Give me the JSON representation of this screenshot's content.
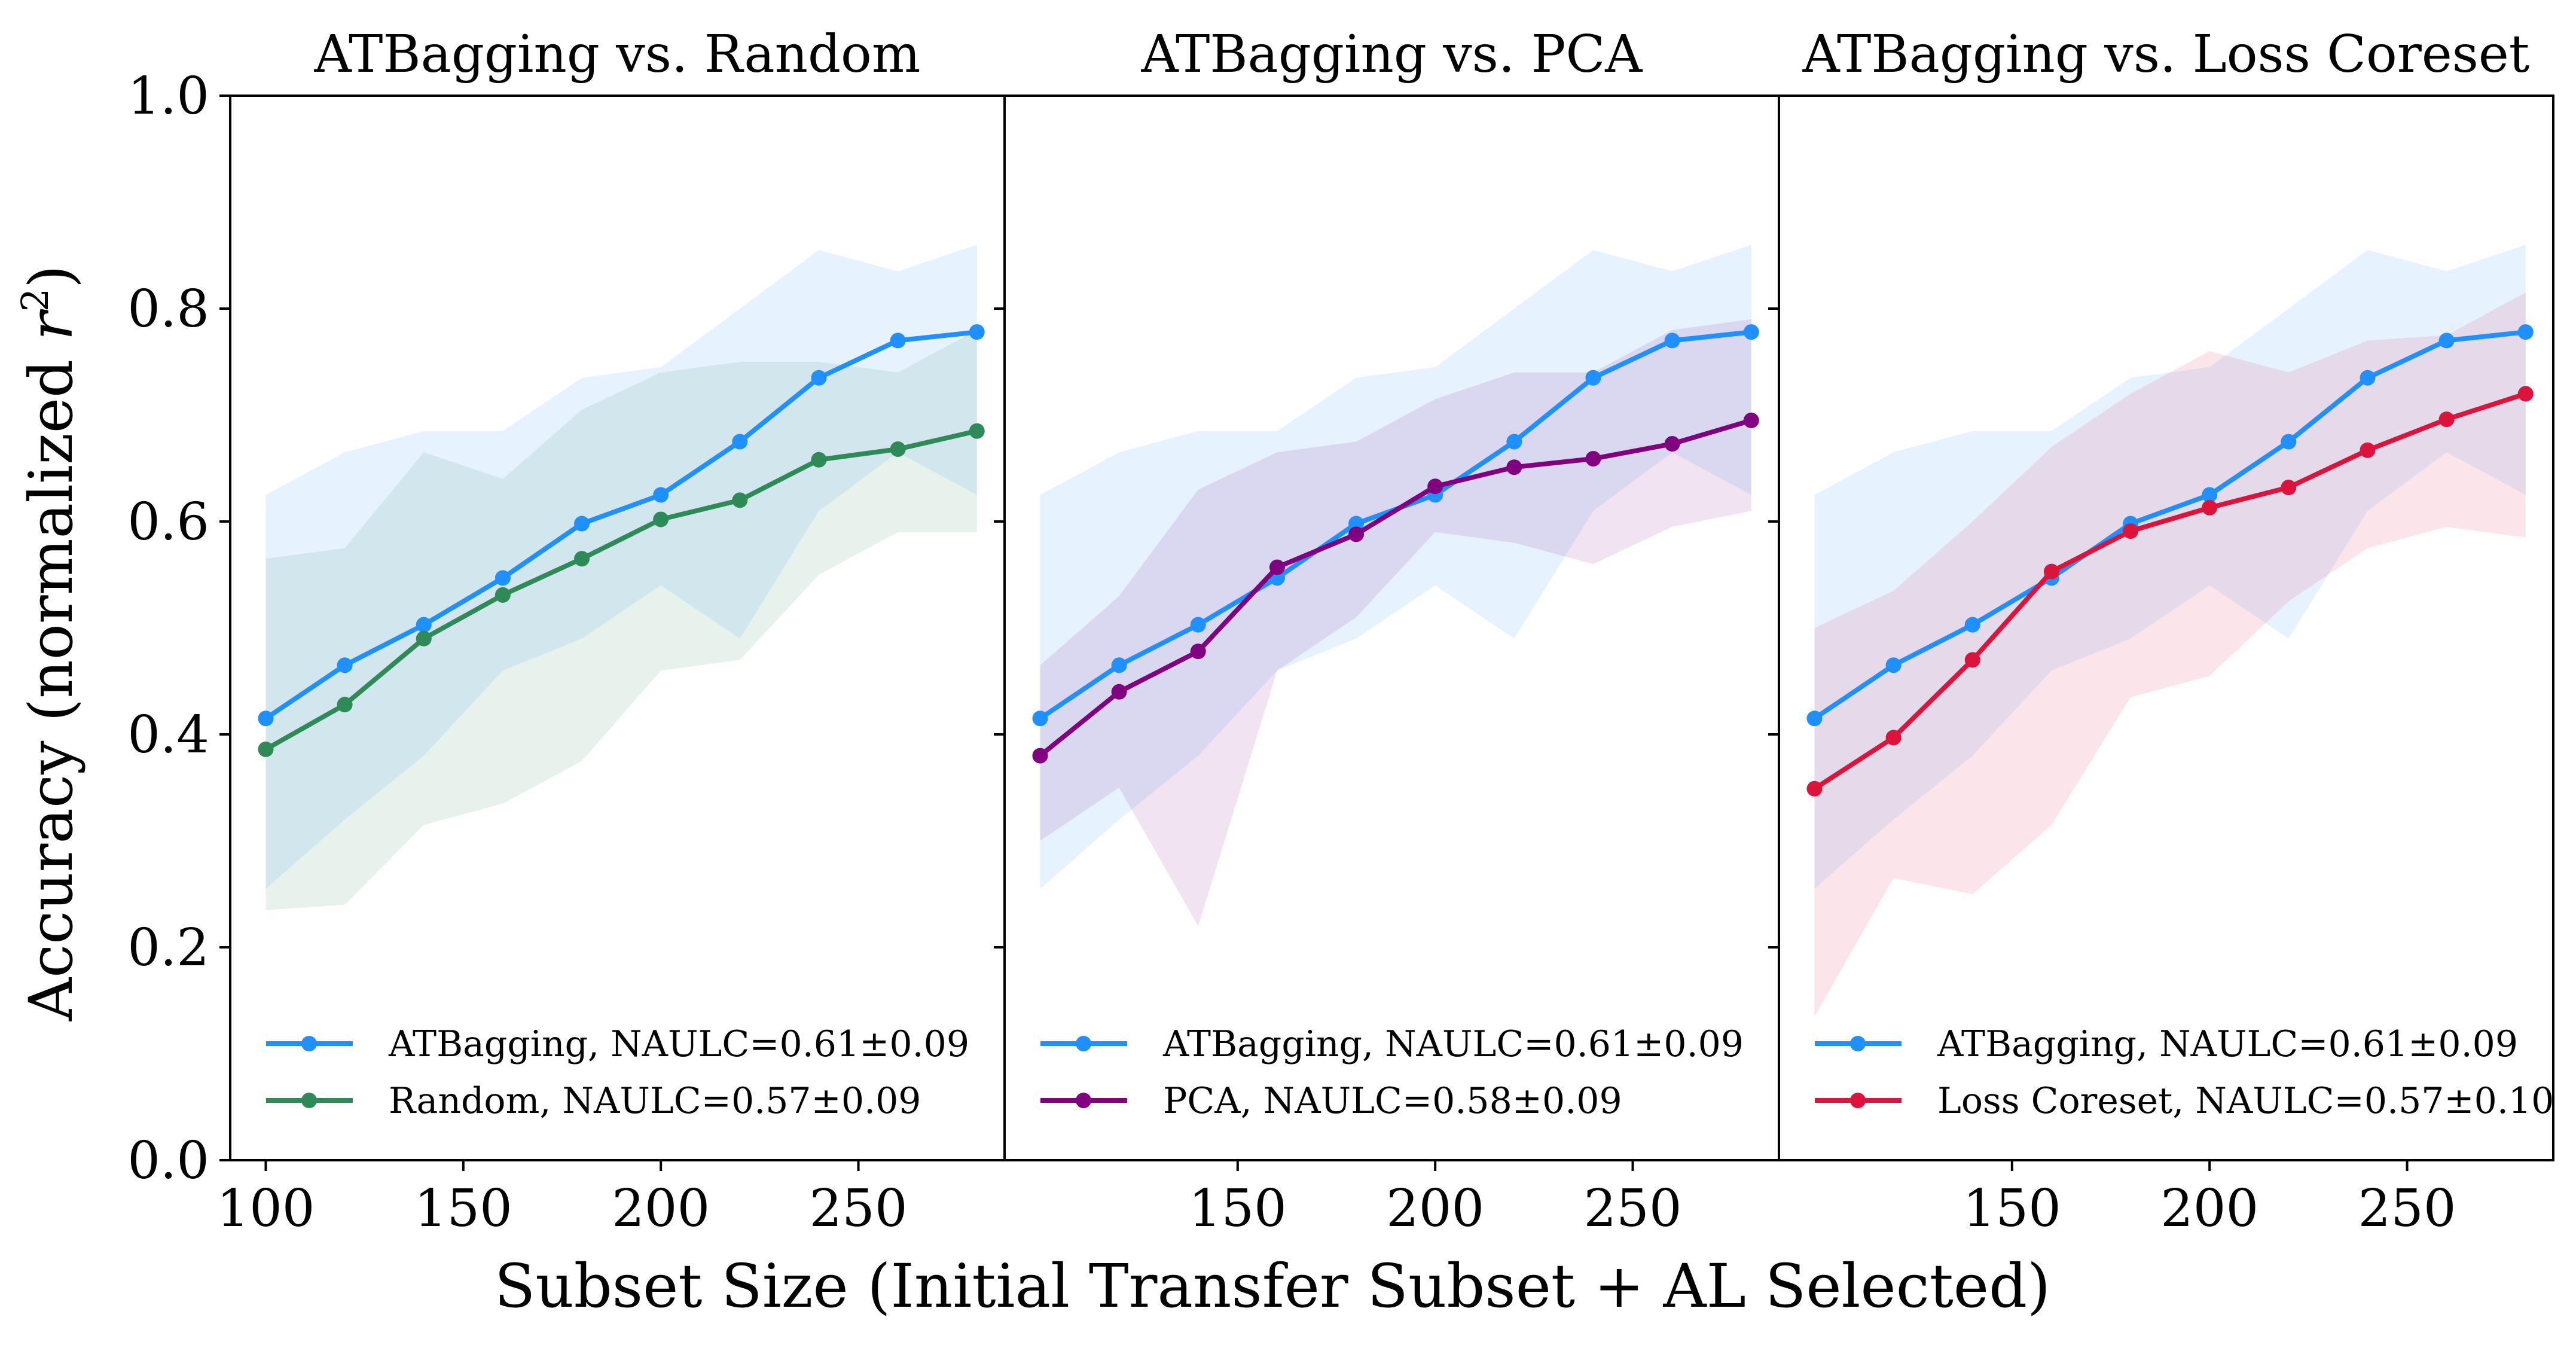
{
  "chart_data": {
    "type": "line",
    "xlabel": "Subset Size (Initial Transfer Subset + AL Selected)",
    "ylabel": "Accuracy (normalized r²)",
    "ylabel_parts": {
      "prefix": "Accuracy (normalized ",
      "var": "r",
      "sup": "2",
      "suffix": ")"
    },
    "ylim": [
      0.0,
      1.0
    ],
    "xlim": [
      91,
      287
    ],
    "yticks": [
      "0.0",
      "0.2",
      "0.4",
      "0.6",
      "0.8",
      "1.0"
    ],
    "ytick_values": [
      0.0,
      0.2,
      0.4,
      0.6,
      0.8,
      1.0
    ],
    "x": [
      100,
      120,
      140,
      160,
      180,
      200,
      220,
      240,
      260,
      280
    ],
    "panels": [
      {
        "title": "ATBagging vs. Random",
        "xticks": [
          "100",
          "150",
          "200",
          "250"
        ],
        "xtick_values": [
          100,
          150,
          200,
          250
        ],
        "series": [
          {
            "name": "ATBagging",
            "legend": "ATBagging, NAULC=0.61±0.09",
            "color": "#1e90ff",
            "values": [
              0.415,
              0.465,
              0.503,
              0.547,
              0.598,
              0.625,
              0.675,
              0.735,
              0.77,
              0.778
            ],
            "lower": [
              0.255,
              0.32,
              0.38,
              0.46,
              0.49,
              0.54,
              0.49,
              0.61,
              0.665,
              0.625
            ],
            "upper": [
              0.625,
              0.665,
              0.685,
              0.685,
              0.735,
              0.745,
              0.8,
              0.855,
              0.835,
              0.86
            ]
          },
          {
            "name": "Random",
            "legend": "Random, NAULC=0.57±0.09",
            "color": "#2e8b57",
            "values": [
              0.386,
              0.428,
              0.49,
              0.531,
              0.565,
              0.602,
              0.62,
              0.658,
              0.668,
              0.685
            ],
            "lower": [
              0.235,
              0.24,
              0.315,
              0.335,
              0.375,
              0.46,
              0.47,
              0.55,
              0.59,
              0.59
            ],
            "upper": [
              0.565,
              0.575,
              0.665,
              0.64,
              0.705,
              0.74,
              0.75,
              0.75,
              0.74,
              0.78
            ]
          }
        ]
      },
      {
        "title": "ATBagging vs. PCA",
        "xticks": [
          "150",
          "200",
          "250"
        ],
        "xtick_values": [
          150,
          200,
          250
        ],
        "series": [
          {
            "name": "ATBagging",
            "legend": "ATBagging, NAULC=0.61±0.09",
            "color": "#1e90ff",
            "values": [
              0.415,
              0.465,
              0.503,
              0.547,
              0.598,
              0.625,
              0.675,
              0.735,
              0.77,
              0.778
            ],
            "lower": [
              0.255,
              0.32,
              0.38,
              0.46,
              0.49,
              0.54,
              0.49,
              0.61,
              0.665,
              0.625
            ],
            "upper": [
              0.625,
              0.665,
              0.685,
              0.685,
              0.735,
              0.745,
              0.8,
              0.855,
              0.835,
              0.86
            ]
          },
          {
            "name": "PCA",
            "legend": "PCA, NAULC=0.58±0.09",
            "color": "#800080",
            "values": [
              0.38,
              0.44,
              0.478,
              0.557,
              0.588,
              0.633,
              0.651,
              0.659,
              0.673,
              0.695
            ],
            "lower": [
              0.3,
              0.35,
              0.22,
              0.46,
              0.51,
              0.59,
              0.58,
              0.56,
              0.595,
              0.61
            ],
            "upper": [
              0.465,
              0.53,
              0.63,
              0.665,
              0.675,
              0.715,
              0.74,
              0.74,
              0.78,
              0.79
            ]
          }
        ]
      },
      {
        "title": "ATBagging vs. Loss Coreset",
        "xticks": [
          "150",
          "200",
          "250"
        ],
        "xtick_values": [
          150,
          200,
          250
        ],
        "series": [
          {
            "name": "ATBagging",
            "legend": "ATBagging, NAULC=0.61±0.09",
            "color": "#1e90ff",
            "values": [
              0.415,
              0.465,
              0.503,
              0.547,
              0.598,
              0.625,
              0.675,
              0.735,
              0.77,
              0.778
            ],
            "lower": [
              0.255,
              0.32,
              0.38,
              0.46,
              0.49,
              0.54,
              0.49,
              0.61,
              0.665,
              0.625
            ],
            "upper": [
              0.625,
              0.665,
              0.685,
              0.685,
              0.735,
              0.745,
              0.8,
              0.855,
              0.835,
              0.86
            ]
          },
          {
            "name": "Loss Coreset",
            "legend": "Loss Coreset, NAULC=0.57±0.10",
            "color": "#dc143c",
            "values": [
              0.349,
              0.397,
              0.47,
              0.553,
              0.591,
              0.613,
              0.632,
              0.667,
              0.696,
              0.72
            ],
            "lower": [
              0.135,
              0.265,
              0.25,
              0.315,
              0.435,
              0.455,
              0.525,
              0.575,
              0.595,
              0.585
            ],
            "upper": [
              0.5,
              0.535,
              0.6,
              0.67,
              0.72,
              0.76,
              0.74,
              0.77,
              0.775,
              0.815
            ]
          }
        ]
      }
    ]
  }
}
